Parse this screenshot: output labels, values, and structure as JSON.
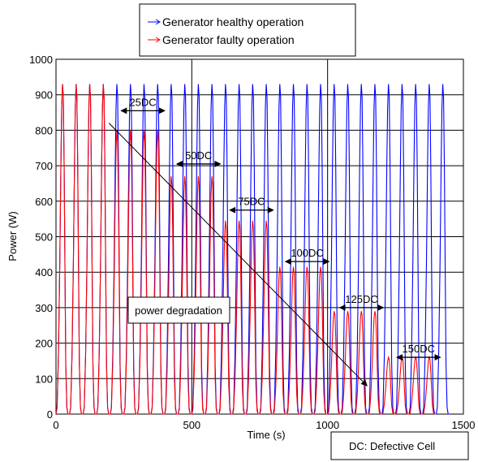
{
  "chart_data": {
    "type": "line",
    "xlabel": "Time (s)",
    "ylabel": "Power (W)",
    "xlim": [
      0,
      1500
    ],
    "ylim": [
      0,
      1000
    ],
    "x_ticks": [
      "0",
      "500",
      "1000",
      "1500"
    ],
    "y_ticks": [
      "0",
      "100",
      "200",
      "300",
      "400",
      "500",
      "600",
      "700",
      "800",
      "900",
      "1000"
    ],
    "grid": "horizontal every 100 W; vertical at 500 and 1000",
    "legend": {
      "placement": "top-center"
    },
    "cycle_period_s": 50,
    "series": [
      {
        "name": "Generator healthy operation",
        "color": "#0000ff",
        "cycle_peaks_W": [
          930,
          930,
          930,
          930,
          930,
          930,
          930,
          930,
          930,
          930,
          930,
          930,
          930,
          930,
          930,
          930,
          930,
          930,
          930,
          930,
          930,
          930,
          930,
          930,
          930,
          930,
          930,
          930,
          930
        ]
      },
      {
        "name": "Generator faulty operation",
        "color": "#ff0000",
        "cycle_peaks_W": [
          930,
          930,
          930,
          930,
          800,
          800,
          800,
          800,
          670,
          670,
          670,
          670,
          545,
          545,
          545,
          545,
          415,
          415,
          415,
          415,
          290,
          290,
          290,
          290,
          160,
          160,
          160,
          160
        ]
      }
    ],
    "annotations": [
      {
        "text": "25DC",
        "x_range": [
          240,
          400
        ],
        "y": 855
      },
      {
        "text": "50DC",
        "x_range": [
          445,
          605
        ],
        "y": 705
      },
      {
        "text": "75DC",
        "x_range": [
          640,
          800
        ],
        "y": 575
      },
      {
        "text": "100DC",
        "x_range": [
          845,
          1005
        ],
        "y": 430
      },
      {
        "text": "125DC",
        "x_range": [
          1045,
          1205
        ],
        "y": 300
      },
      {
        "text": "150DC",
        "x_range": [
          1255,
          1415
        ],
        "y": 160
      }
    ],
    "arrow_annotation": {
      "text": "power degradation",
      "from": [
        195,
        820
      ],
      "to": [
        1145,
        80
      ]
    },
    "note_box": "DC: Defective Cell"
  }
}
